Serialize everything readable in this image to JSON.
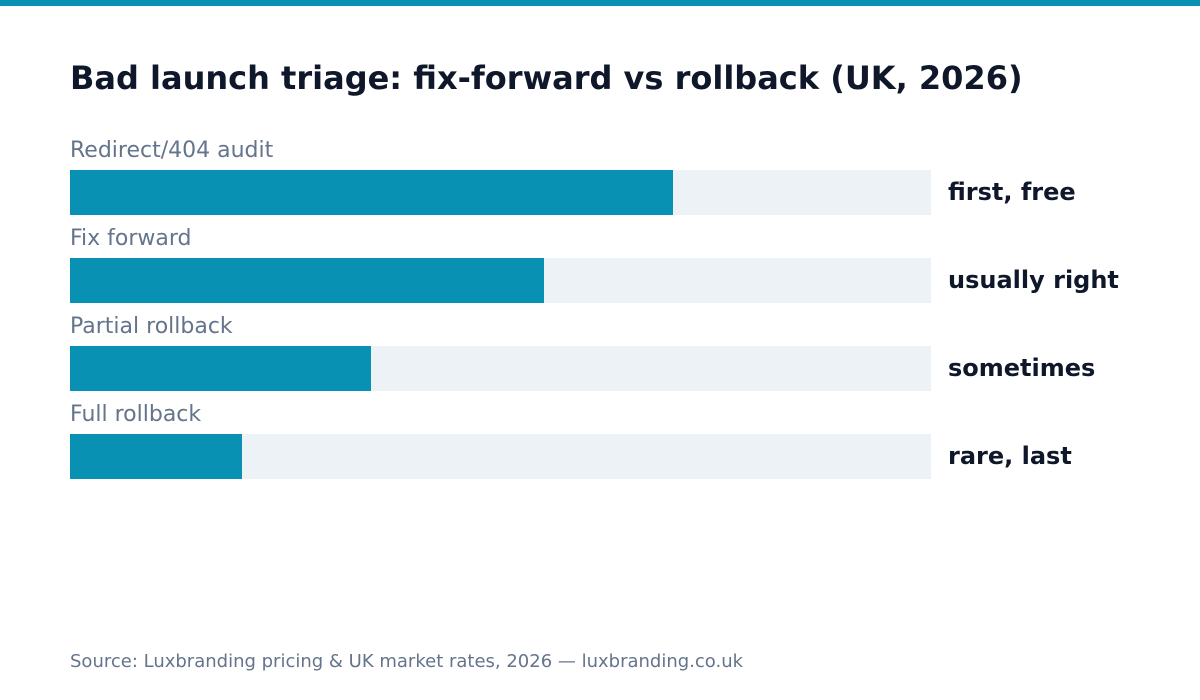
{
  "colors": {
    "accent": "#0891b2",
    "track": "#edf2f7",
    "title": "#0f172a",
    "muted": "#64748b"
  },
  "chart_data": {
    "type": "bar",
    "orientation": "horizontal",
    "title": "Bad launch triage: fix-forward vs rollback (UK, 2026)",
    "categories": [
      "Redirect/404 audit",
      "Fix forward",
      "Partial rollback",
      "Full rollback"
    ],
    "values": [
      70,
      55,
      35,
      20
    ],
    "value_labels": [
      "first, free",
      "usually right",
      "sometimes",
      "rare, last"
    ],
    "xlim": [
      0,
      100
    ],
    "grid": false,
    "legend": "none"
  },
  "source": "Source: Luxbranding pricing & UK market rates, 2026 — luxbranding.co.uk"
}
